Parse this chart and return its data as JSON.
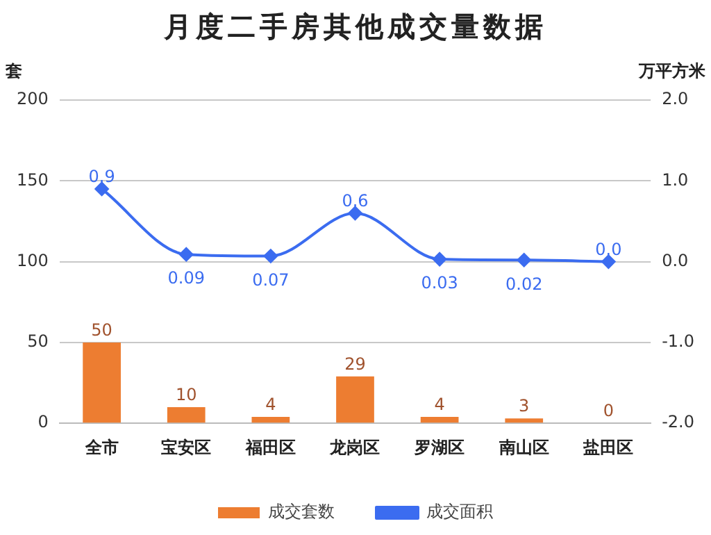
{
  "chart_data": {
    "type": "bar",
    "title": "月度二手房其他成交量数据",
    "ylabel": "套",
    "y2label": "万平方米",
    "categories": [
      "全市",
      "宝安区",
      "福田区",
      "龙岗区",
      "罗湖区",
      "南山区",
      "盐田区"
    ],
    "series": [
      {
        "name": "成交套数",
        "color": "#ed7d31",
        "values": [
          50,
          10,
          4,
          29,
          4,
          3,
          0
        ],
        "value_labels": [
          "50",
          "10",
          "4",
          "29",
          "4",
          "3",
          "0"
        ]
      },
      {
        "name": "成交面积",
        "type": "line",
        "axis": "y2",
        "color": "#3b6cf0",
        "marker": "diamond",
        "values": [
          0.9,
          0.09,
          0.07,
          0.6,
          0.03,
          0.02,
          0.0
        ],
        "value_labels": [
          "0.9",
          "0.09",
          "0.07",
          "0.6",
          "0.03",
          "0.02",
          "0.0"
        ]
      }
    ],
    "ylim": [
      0,
      200
    ],
    "yticks": [
      0,
      50,
      100,
      150,
      200
    ],
    "y2lim": [
      -2,
      2
    ],
    "y2ticks": [
      {
        "value": -2,
        "label": "-2.0"
      },
      {
        "value": -1,
        "label": "-1.0"
      },
      {
        "value": 0,
        "label": "0.0"
      },
      {
        "value": 1,
        "label": "1.0"
      },
      {
        "value": 2,
        "label": "2.0"
      }
    ],
    "grid": "y",
    "legend": "bottom"
  }
}
